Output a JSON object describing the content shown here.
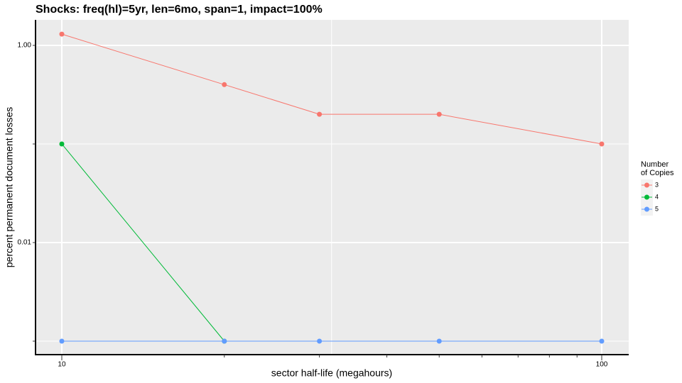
{
  "chart_data": {
    "type": "line",
    "title": "Shocks: freq(hl)=5yr, len=6mo, span=1, impact=100%",
    "x_label": "sector half-life (megahours)",
    "y_label": "percent permanent document losses",
    "x": [
      10,
      20,
      30,
      50,
      100
    ],
    "series": [
      {
        "name": "3",
        "color": "#f8766d",
        "values": [
          1.3,
          0.4,
          0.2,
          0.2,
          0.1
        ]
      },
      {
        "name": "4",
        "color": "#00ba38",
        "values": [
          0.1,
          0.001,
          null,
          null,
          null
        ]
      },
      {
        "name": "5",
        "color": "#619cff",
        "values": [
          0.001,
          0.001,
          0.001,
          0.001,
          0.001
        ]
      }
    ],
    "legend_title": [
      "Number",
      "of Copies"
    ],
    "legend_position": "right",
    "xscale": "log",
    "yscale": "log",
    "xlim": [
      8.94,
      112.2
    ],
    "ylim": [
      0.00073,
      1.815
    ],
    "xticks": [
      10,
      100
    ],
    "xminorticks": [
      20,
      30,
      40,
      50,
      60,
      70,
      80,
      90
    ],
    "xminorgrid": [
      31.6
    ],
    "yticks": [
      {
        "value": 1,
        "label": "1.00"
      },
      {
        "value": 0.01,
        "label": "0.01"
      }
    ],
    "yminorgrid": [
      0.1,
      0.001
    ],
    "grid": true
  }
}
